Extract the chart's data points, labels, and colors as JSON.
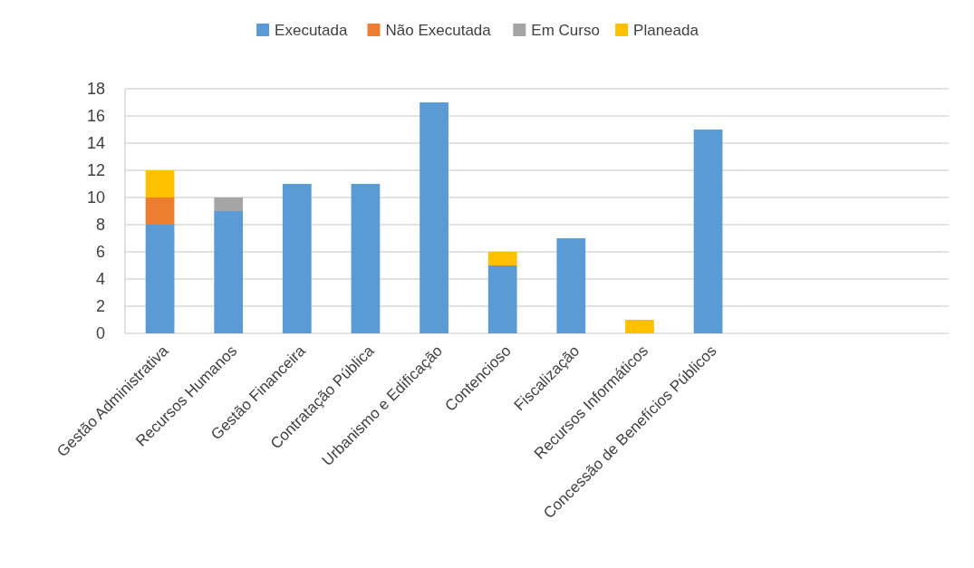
{
  "chart_data": {
    "type": "bar",
    "stacked": true,
    "categories": [
      "Gestão Administrativa",
      "Recursos Humanos",
      "Gestão Financeira",
      "Contratação Pública",
      "Urbanismo e Edificação",
      "Contencioso",
      "Fiscalização",
      "Recursos Informáticos",
      "Concessão de Benefícios Públicos",
      null,
      null,
      null
    ],
    "series": [
      {
        "name": "Executada",
        "color": "#5b9bd5",
        "values": [
          8,
          9,
          11,
          11,
          17,
          5,
          7,
          null,
          15,
          null,
          null,
          null
        ]
      },
      {
        "name": "Não Executada",
        "color": "#ed7d31",
        "values": [
          2,
          null,
          null,
          null,
          null,
          null,
          null,
          null,
          null,
          null,
          null,
          null
        ]
      },
      {
        "name": "Em Curso",
        "color": "#a5a5a5",
        "values": [
          null,
          1,
          null,
          null,
          null,
          null,
          null,
          null,
          null,
          null,
          null,
          null
        ]
      },
      {
        "name": "Planeada",
        "color": "#ffc000",
        "values": [
          2,
          null,
          null,
          null,
          null,
          1,
          null,
          1,
          null,
          null,
          null,
          null
        ]
      }
    ],
    "ylim": [
      0,
      18
    ],
    "yticks": [
      0,
      2,
      4,
      6,
      8,
      10,
      12,
      14,
      16,
      18
    ],
    "grid": "y",
    "legend": "top"
  }
}
